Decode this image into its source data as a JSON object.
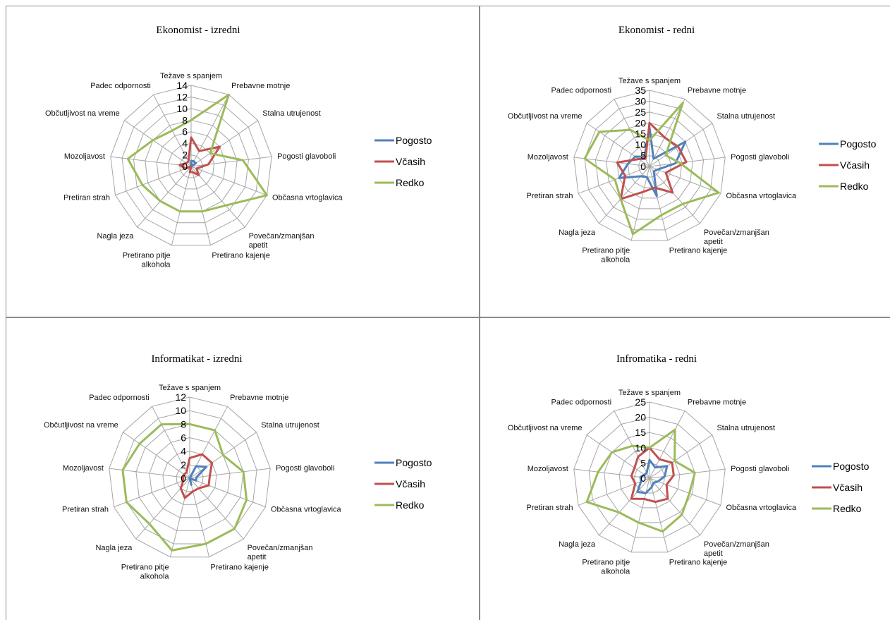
{
  "categories": [
    "Težave s spanjem",
    "Prebavne motnje",
    "Stalna utrujenost",
    "Pogosti glavoboli",
    "Občasna vrtoglavica",
    "Povečan/zmanjšan apetit",
    "Pretirano kajenje",
    "Pretirano pitje alkohola",
    "Nagla jeza",
    "Pretiran strah",
    "Mozoljavost",
    "Občutljivost na vreme",
    "Padec odpornosti"
  ],
  "colors": {
    "Pogosto": "#4f81bd",
    "Včasih": "#c0504d",
    "Redko": "#9bbb59"
  },
  "chart_data": [
    {
      "type": "radar",
      "title": "Ekonomist - izredni",
      "ylim": [
        0,
        14
      ],
      "ticks": [
        0,
        2,
        4,
        6,
        8,
        10,
        12,
        14
      ],
      "legend_position": "right",
      "categories": [
        "Težave s spanjem",
        "Prebavne motnje",
        "Stalna utrujenost",
        "Pogosti glavoboli",
        "Občasna vrtoglavica",
        "Povečan/zmanjšan apetit",
        "Pretirano kajenje",
        "Pretirano pitje alkohola",
        "Nagla jeza",
        "Pretiran strah",
        "Mozoljavost",
        "Občutljivost na vreme",
        "Padec odpornosti"
      ],
      "series": [
        {
          "name": "Pogosto",
          "values": [
            1,
            1,
            1,
            0,
            0,
            0,
            0,
            0,
            0,
            0,
            0,
            0,
            0
          ]
        },
        {
          "name": "Včasih",
          "values": [
            5,
            3,
            6,
            3,
            1,
            2,
            1,
            1,
            0,
            1,
            2,
            1,
            1
          ]
        },
        {
          "name": "Redko",
          "values": [
            8,
            14,
            4,
            9,
            14,
            9,
            8,
            8,
            8,
            9,
            11,
            8,
            7
          ]
        }
      ]
    },
    {
      "type": "radar",
      "title": "Ekonomist - redni",
      "ylim": [
        0,
        35
      ],
      "ticks": [
        0,
        5,
        10,
        15,
        20,
        25,
        30,
        35
      ],
      "legend_position": "right",
      "categories": [
        "Težave s spanjem",
        "Prebavne motnje",
        "Stalna utrujenost",
        "Pogosti glavoboli",
        "Občasna vrtoglavica",
        "Povečan/zmanjšan apetit",
        "Pretirano kajenje",
        "Pretirano pitje alkohola",
        "Nagla jeza",
        "Pretiran strah",
        "Mozoljavost",
        "Občutljivost na vreme",
        "Padec odpornosti"
      ],
      "series": [
        {
          "name": "Pogosto",
          "values": [
            18,
            4,
            20,
            12,
            4,
            3,
            14,
            5,
            6,
            15,
            10,
            8,
            5
          ]
        },
        {
          "name": "Včasih",
          "values": [
            20,
            15,
            16,
            17,
            8,
            16,
            10,
            12,
            20,
            12,
            15,
            6,
            4
          ]
        },
        {
          "name": "Redko",
          "values": [
            12,
            33,
            9,
            14,
            34,
            23,
            23,
            32,
            20,
            17,
            30,
            28,
            19
          ]
        }
      ]
    },
    {
      "type": "radar",
      "title": "Informatikat - izredni",
      "ylim": [
        0,
        12
      ],
      "ticks": [
        0,
        2,
        4,
        6,
        8,
        10,
        12
      ],
      "legend_position": "right",
      "categories": [
        "Težave s spanjem",
        "Prebavne motnje",
        "Stalna utrujenost",
        "Pogosti glavoboli",
        "Občasna vrtoglavica",
        "Povečan/zmanjšan apetit",
        "Pretirano kajenje",
        "Pretirano pitje alkohola",
        "Nagla jeza",
        "Pretiran strah",
        "Mozoljavost",
        "Občutljivost na vreme",
        "Padec odpornosti"
      ],
      "series": [
        {
          "name": "Pogosto",
          "values": [
            0,
            2,
            3,
            1,
            1,
            0,
            1,
            0,
            0,
            0,
            0,
            0,
            0
          ]
        },
        {
          "name": "Včasih",
          "values": [
            3,
            4,
            4,
            3,
            3,
            2,
            2,
            3,
            2,
            1,
            1,
            1,
            1
          ]
        },
        {
          "name": "Redko",
          "values": [
            8,
            8,
            6,
            8,
            9,
            10,
            10,
            11,
            9,
            10,
            10,
            9,
            9
          ]
        }
      ]
    },
    {
      "type": "radar",
      "title": "Infromatika - redni",
      "ylim": [
        0,
        25
      ],
      "ticks": [
        0,
        5,
        10,
        15,
        20,
        25
      ],
      "legend_position": "right",
      "categories": [
        "Težave s spanjem",
        "Prebavne motnje",
        "Stalna utrujenost",
        "Pogosti glavoboli",
        "Občasna vrtoglavica",
        "Povečan/zmanjšan apetit",
        "Pretirano kajenje",
        "Pretirano pitje alkohola",
        "Nagla jeza",
        "Pretiran strah",
        "Mozoljavost",
        "Občutljivost na vreme",
        "Padec odpornosti"
      ],
      "series": [
        {
          "name": "Pogosto",
          "values": [
            6,
            4,
            7,
            5,
            3,
            2,
            3,
            5,
            6,
            3,
            3,
            2,
            2
          ]
        },
        {
          "name": "Včasih",
          "values": [
            10,
            7,
            9,
            8,
            6,
            9,
            8,
            7,
            9,
            5,
            6,
            6,
            8
          ]
        },
        {
          "name": "Redko",
          "values": [
            10,
            18,
            10,
            15,
            14,
            16,
            18,
            15,
            15,
            22,
            17,
            15,
            12
          ]
        }
      ]
    }
  ]
}
